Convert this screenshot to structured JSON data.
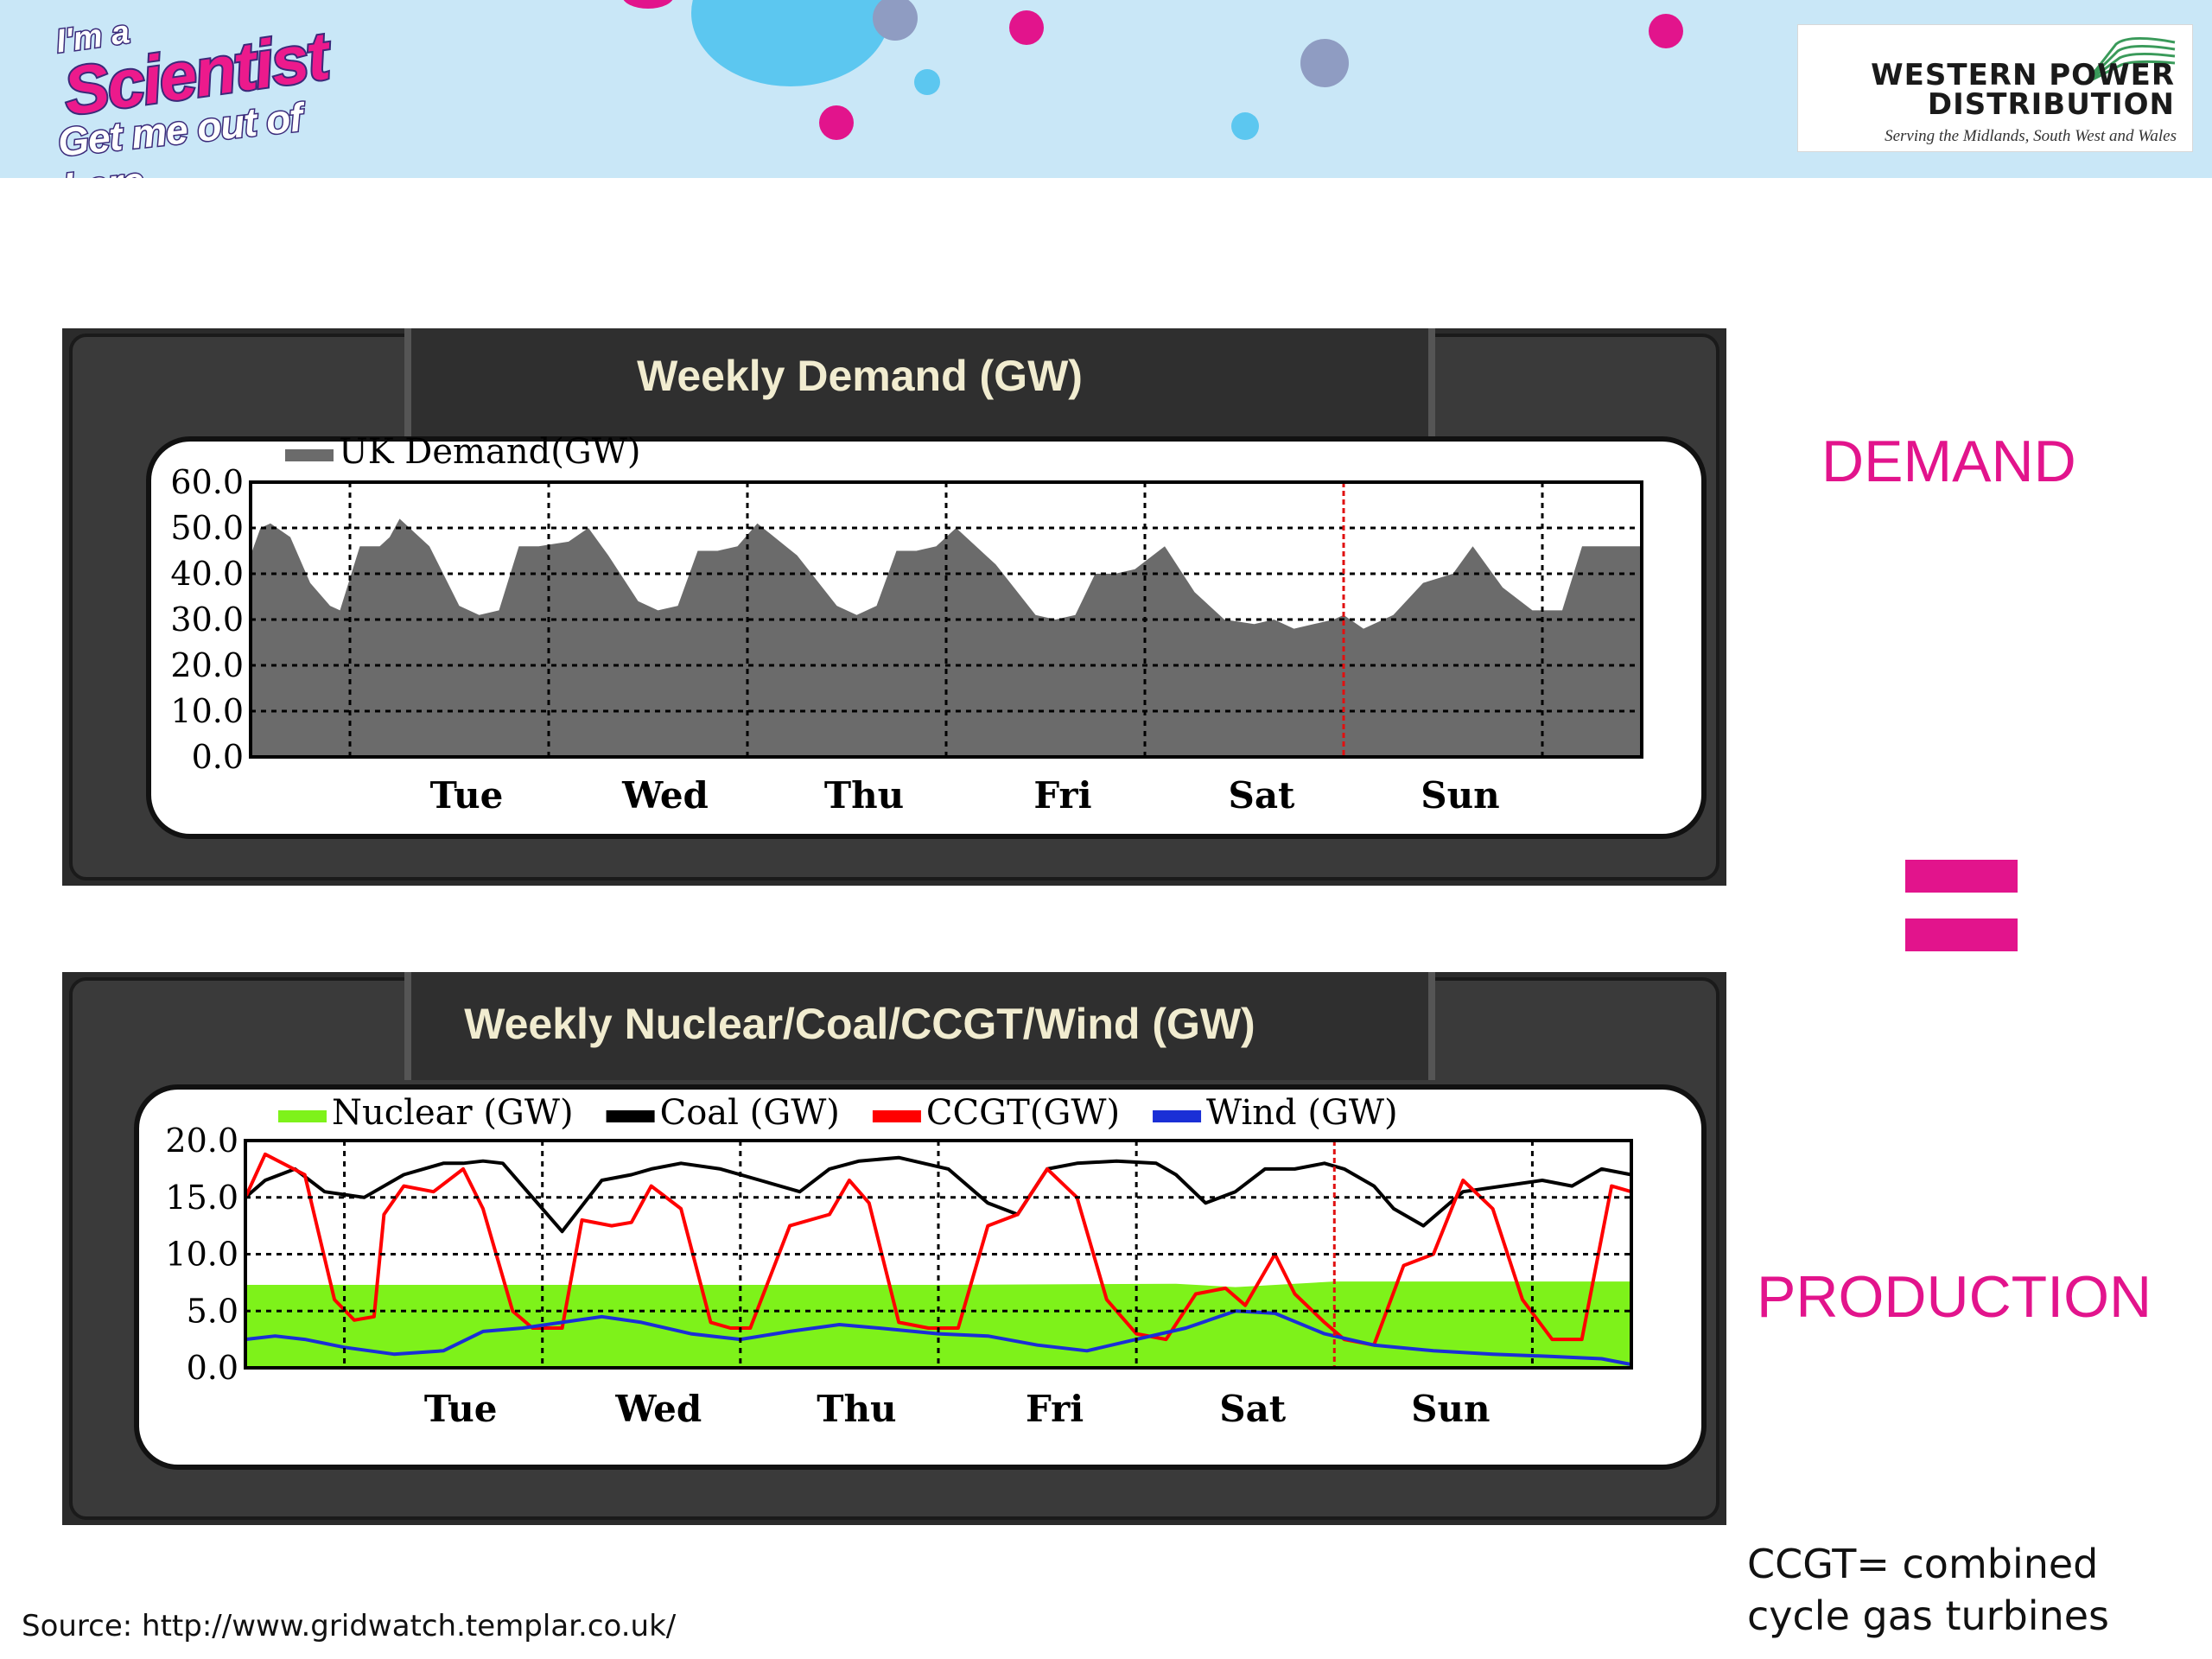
{
  "header": {
    "left_logo": {
      "line1": "I'm a",
      "line2": "Scientist",
      "line3": "Get me out of here"
    },
    "right_logo": {
      "line1": "WESTERN POWER",
      "line2": "DISTRIBUTION",
      "tagline": "Serving the Midlands, South West and Wales"
    }
  },
  "labels": {
    "demand": "DEMAND",
    "production": "PRODUCTION",
    "note_line1": "CCGT= combined",
    "note_line2": "cycle gas turbines",
    "source": "Source: http://www.gridwatch.templar.co.uk/"
  },
  "colors": {
    "accent": "#e2148c",
    "demand_fill": "#6b6b6b",
    "nuclear": "#7ef21a",
    "coal": "#000000",
    "ccgt": "#ff0000",
    "wind": "#1a2fd6",
    "panel_bg": "#2b2b2b"
  },
  "chart_data": [
    {
      "type": "area",
      "title": "Weekly Demand (GW)",
      "xlabel": "",
      "ylabel": "",
      "ylim": [
        0,
        60
      ],
      "y_ticks": [
        "0.0",
        "10.0",
        "20.0",
        "30.0",
        "40.0",
        "50.0",
        "60.0"
      ],
      "x_range": [
        0,
        7
      ],
      "day_ticks": [
        {
          "label": "Tue",
          "x": 1
        },
        {
          "label": "Wed",
          "x": 2
        },
        {
          "label": "Thu",
          "x": 3
        },
        {
          "label": "Fri",
          "x": 4
        },
        {
          "label": "Sat",
          "x": 5
        },
        {
          "label": "Sun",
          "x": 6
        }
      ],
      "now_marker_x": 5.5,
      "grid": true,
      "legend_position": "top-left",
      "series": [
        {
          "name": "UK Demand(GW)",
          "x": [
            0,
            0.05,
            0.1,
            0.2,
            0.3,
            0.4,
            0.45,
            0.55,
            0.65,
            0.7,
            0.75,
            0.9,
            1.05,
            1.15,
            1.25,
            1.35,
            1.45,
            1.6,
            1.7,
            1.8,
            1.95,
            2.05,
            2.15,
            2.25,
            2.35,
            2.45,
            2.55,
            2.75,
            2.95,
            3.05,
            3.15,
            3.25,
            3.35,
            3.45,
            3.55,
            3.75,
            3.95,
            4.05,
            4.15,
            4.25,
            4.35,
            4.45,
            4.6,
            4.75,
            4.9,
            5.05,
            5.15,
            5.25,
            5.35,
            5.45,
            5.5,
            5.6,
            5.75,
            5.9,
            6.05,
            6.15,
            6.3,
            6.45,
            6.6,
            6.7,
            6.85,
            7
          ],
          "y": [
            44,
            50,
            51,
            48,
            38,
            33,
            32,
            46,
            46,
            48,
            52,
            46,
            33,
            31,
            32,
            46,
            46,
            47,
            50,
            44,
            34,
            32,
            33,
            45,
            45,
            46,
            51,
            44,
            33,
            31,
            33,
            45,
            45,
            46,
            50,
            42,
            31,
            30,
            31,
            40,
            40,
            41,
            46,
            36,
            30,
            29,
            30,
            28,
            29,
            30,
            31,
            28,
            31,
            38,
            40,
            46,
            37,
            32,
            32,
            46,
            46,
            46
          ]
        }
      ]
    },
    {
      "type": "line",
      "title": "Weekly Nuclear/Coal/CCGT/Wind (GW)",
      "xlabel": "",
      "ylabel": "",
      "ylim": [
        0,
        20
      ],
      "y_ticks": [
        "0.0",
        "5.0",
        "10.0",
        "15.0",
        "20.0"
      ],
      "x_range": [
        0,
        7
      ],
      "day_ticks": [
        {
          "label": "Tue",
          "x": 1
        },
        {
          "label": "Wed",
          "x": 2
        },
        {
          "label": "Thu",
          "x": 3
        },
        {
          "label": "Fri",
          "x": 4
        },
        {
          "label": "Sat",
          "x": 5
        },
        {
          "label": "Sun",
          "x": 6
        }
      ],
      "now_marker_x": 5.5,
      "grid": true,
      "legend_position": "top",
      "series": [
        {
          "name": "Nuclear (GW)",
          "style": "area",
          "x": [
            0,
            3.5,
            4.7,
            5.0,
            5.5,
            7
          ],
          "y": [
            7.3,
            7.3,
            7.4,
            7.1,
            7.6,
            7.6
          ]
        },
        {
          "name": "Coal (GW)",
          "style": "line",
          "x": [
            0,
            0.1,
            0.25,
            0.4,
            0.6,
            0.8,
            1.0,
            1.1,
            1.2,
            1.3,
            1.45,
            1.6,
            1.8,
            1.95,
            2.05,
            2.2,
            2.4,
            2.6,
            2.8,
            2.95,
            3.1,
            3.3,
            3.55,
            3.75,
            3.9,
            4.05,
            4.2,
            4.4,
            4.6,
            4.7,
            4.85,
            5.0,
            5.15,
            5.3,
            5.45,
            5.55,
            5.7,
            5.8,
            5.95,
            6.15,
            6.35,
            6.55,
            6.7,
            6.85,
            7
          ],
          "y": [
            15,
            16.5,
            17.5,
            15.5,
            15,
            17,
            18,
            18,
            18.2,
            18,
            15,
            12,
            16.5,
            17,
            17.5,
            18,
            17.5,
            16.5,
            15.5,
            17.5,
            18.2,
            18.5,
            17.5,
            14.5,
            13.5,
            17.5,
            18,
            18.2,
            18,
            17,
            14.5,
            15.5,
            17.5,
            17.5,
            18,
            17.5,
            16,
            14,
            12.5,
            15.5,
            16,
            16.5,
            16,
            17.5,
            17
          ]
        },
        {
          "name": "CCGT(GW)",
          "style": "line",
          "x": [
            0,
            0.1,
            0.3,
            0.45,
            0.55,
            0.65,
            0.7,
            0.8,
            0.95,
            1.1,
            1.2,
            1.35,
            1.45,
            1.6,
            1.7,
            1.85,
            1.95,
            2.05,
            2.2,
            2.35,
            2.45,
            2.55,
            2.75,
            2.95,
            3.05,
            3.15,
            3.3,
            3.45,
            3.6,
            3.75,
            3.9,
            4.05,
            4.2,
            4.35,
            4.5,
            4.65,
            4.8,
            4.95,
            5.05,
            5.2,
            5.3,
            5.45,
            5.55,
            5.7,
            5.85,
            6.0,
            6.15,
            6.3,
            6.45,
            6.6,
            6.75,
            6.9,
            7
          ],
          "y": [
            15,
            18.8,
            17,
            6,
            4.2,
            4.5,
            13.5,
            16,
            15.5,
            17.5,
            14,
            5,
            3.5,
            3.5,
            13,
            12.5,
            12.8,
            16,
            14,
            4,
            3.5,
            3.5,
            12.5,
            13.5,
            16.5,
            14.5,
            4,
            3.5,
            3.5,
            12.5,
            13.5,
            17.5,
            15,
            6,
            3,
            2.5,
            6.5,
            7,
            5.5,
            10,
            6.5,
            4,
            2.5,
            2,
            9,
            10,
            16.5,
            14,
            6,
            2.5,
            2.5,
            16,
            15.5
          ]
        },
        {
          "name": "Wind (GW)",
          "style": "line",
          "x": [
            0,
            0.15,
            0.3,
            0.5,
            0.75,
            1.0,
            1.2,
            1.4,
            1.6,
            1.8,
            2.0,
            2.25,
            2.5,
            2.75,
            3.0,
            3.2,
            3.5,
            3.75,
            4.0,
            4.25,
            4.5,
            4.75,
            5.0,
            5.2,
            5.45,
            5.7,
            6.0,
            6.3,
            6.6,
            6.85,
            7
          ],
          "y": [
            2.5,
            2.8,
            2.5,
            1.8,
            1.2,
            1.5,
            3.2,
            3.5,
            4.0,
            4.5,
            4.0,
            3.0,
            2.5,
            3.2,
            3.8,
            3.5,
            3.0,
            2.8,
            2.0,
            1.5,
            2.5,
            3.5,
            5.0,
            4.8,
            3.0,
            2.0,
            1.5,
            1.2,
            1.0,
            0.8,
            0.3
          ]
        }
      ]
    }
  ]
}
